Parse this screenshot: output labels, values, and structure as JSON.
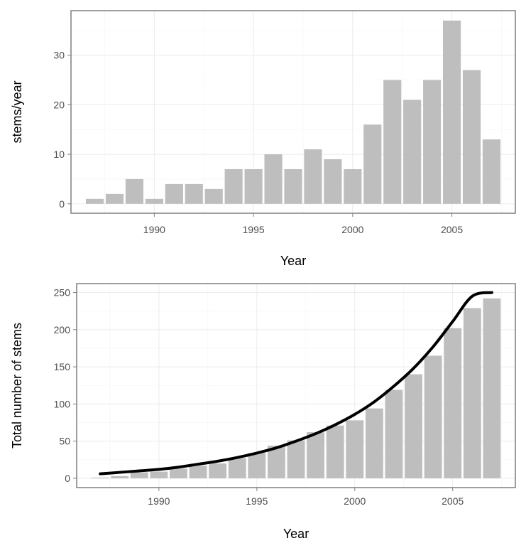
{
  "chart_data": [
    {
      "type": "bar",
      "xlabel": "Year",
      "ylabel": "stems/year",
      "xlim": [
        1985.8,
        2008.2
      ],
      "ylim": [
        -1.9,
        39.0
      ],
      "xticks": [
        1990,
        1995,
        2000,
        2005
      ],
      "yticks": [
        0,
        10,
        20,
        30
      ],
      "grid": true,
      "legend": "none",
      "bar_color": "#bebebe",
      "x": [
        1987,
        1988,
        1989,
        1990,
        1991,
        1992,
        1993,
        1994,
        1995,
        1996,
        1997,
        1998,
        1999,
        2000,
        2001,
        2002,
        2003,
        2004,
        2005,
        2006,
        2007
      ],
      "values": [
        1,
        2,
        5,
        1,
        4,
        4,
        3,
        7,
        7,
        10,
        7,
        11,
        9,
        7,
        16,
        25,
        21,
        25,
        37,
        27,
        13
      ]
    },
    {
      "type": "bar",
      "xlabel": "Year",
      "ylabel": "Total number of stems",
      "xlim": [
        1985.8,
        2008.2
      ],
      "ylim": [
        -12.5,
        262
      ],
      "xticks": [
        1990,
        1995,
        2000,
        2005
      ],
      "yticks": [
        0,
        50,
        100,
        150,
        200,
        250
      ],
      "grid": true,
      "legend": "none",
      "bar_color": "#bebebe",
      "x": [
        1987,
        1988,
        1989,
        1990,
        1991,
        1992,
        1993,
        1994,
        1995,
        1996,
        1997,
        1998,
        1999,
        2000,
        2001,
        2002,
        2003,
        2004,
        2005,
        2006,
        2007
      ],
      "values": [
        1,
        3,
        8,
        9,
        13,
        17,
        20,
        27,
        34,
        44,
        51,
        62,
        71,
        78,
        94,
        119,
        140,
        165,
        202,
        229,
        242
      ],
      "line": {
        "color": "#000000",
        "x": [
          1987,
          1988,
          1989,
          1990,
          1991,
          1992,
          1993,
          1994,
          1995,
          1996,
          1997,
          1998,
          1999,
          2000,
          2001,
          2002,
          2003,
          2004,
          2005,
          2006,
          2007
        ],
        "y": [
          6,
          8,
          10,
          12,
          15,
          19,
          23,
          28,
          34,
          41,
          50,
          60,
          72,
          86,
          103,
          124,
          148,
          177,
          211,
          245,
          250
        ]
      }
    }
  ]
}
